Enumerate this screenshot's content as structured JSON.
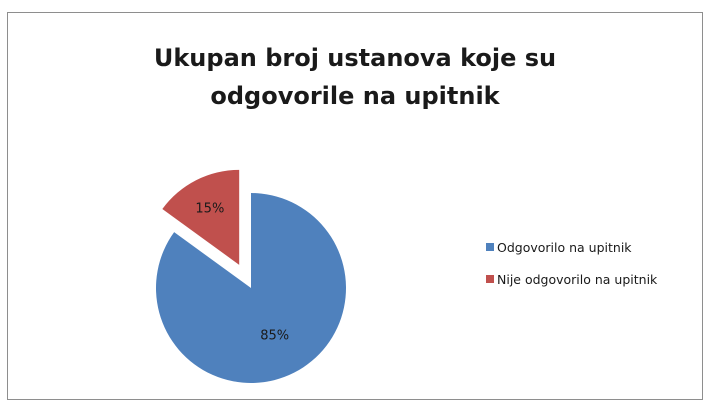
{
  "chart_data": {
    "type": "pie",
    "title_lines": [
      "Ukupan broj ustanova koje su",
      "odgovorile na upitnik"
    ],
    "categories": [
      "Odgovorilo na upitnik",
      "Nije odgovorilo na upitnik"
    ],
    "values": [
      85,
      15
    ],
    "data_labels": [
      "85%",
      "15%"
    ],
    "colors": [
      "#4f81bd",
      "#c0504d"
    ],
    "exploded": [
      false,
      true
    ],
    "legend_position": "right"
  }
}
